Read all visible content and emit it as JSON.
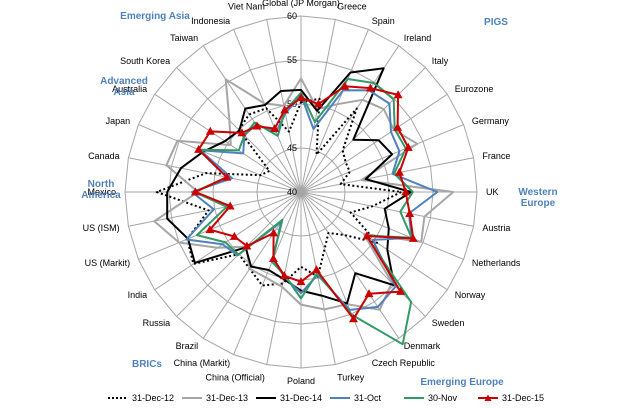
{
  "chart_data": {
    "type": "radar",
    "categories": [
      "Global (JP Morgan)",
      "Greece",
      "Spain",
      "Ireland",
      "Italy",
      "Eurozone",
      "Germany",
      "France",
      "UK",
      "Austria",
      "Netherlands",
      "Norway",
      "Sweden",
      "Denmark",
      "Czech Republic",
      "Turkey",
      "Poland",
      "China (Official)",
      "China (Markit)",
      "Brazil",
      "Russia",
      "India",
      "US (Markit)",
      "US (ISM)",
      "Mexico",
      "Canada",
      "Japan",
      "Australia",
      "South Korea",
      "Taiwan",
      "Indonesia",
      "Viet Nam"
    ],
    "ticks": [
      40,
      45,
      50,
      55,
      60
    ],
    "rlim": [
      40,
      60
    ],
    "groups": [
      {
        "name": "Emerging Asia"
      },
      {
        "name": "PIGS"
      },
      {
        "name": "Advanced Asia"
      },
      {
        "name": "Western Europe"
      },
      {
        "name": "North America"
      },
      {
        "name": "BRICs"
      },
      {
        "name": "Emerging Europe"
      }
    ],
    "series": [
      {
        "name": "31-Dec-12",
        "color": "#000000",
        "style": "dotted",
        "values": [
          50.2,
          50.8,
          44.6,
          51.4,
          46.7,
          46.1,
          46.0,
          44.6,
          51.4,
          48.3,
          46.1,
          50.4,
          46.9,
          45.6,
          47.0,
          49.8,
          48.5,
          50.6,
          51.5,
          50.5,
          50.0,
          54.7,
          54.0,
          50.7,
          56.4,
          51.0,
          45.0,
          44.3,
          50.0,
          50.6,
          50.3,
          47.0
        ]
      },
      {
        "name": "31-Dec-13",
        "color": "#a6a6a6",
        "style": "solid",
        "values": [
          52.9,
          49.6,
          50.8,
          52.6,
          53.3,
          52.7,
          54.3,
          47.0,
          57.3,
          54.3,
          54.8,
          48.6,
          54.6,
          56.1,
          53.8,
          53.6,
          52.8,
          51.0,
          50.5,
          50.5,
          48.8,
          51.4,
          55.0,
          57.0,
          51.7,
          55.6,
          55.2,
          49.6,
          51.5,
          55.4,
          50.9,
          50.0
        ]
      },
      {
        "name": "31-Dec-14",
        "color": "#000000",
        "style": "solid",
        "values": [
          51.6,
          49.4,
          54.7,
          56.9,
          48.4,
          50.6,
          51.2,
          47.5,
          52.5,
          49.7,
          50.8,
          51.8,
          55.0,
          51.1,
          53.7,
          52.0,
          51.2,
          50.1,
          49.6,
          50.2,
          48.9,
          54.5,
          53.9,
          55.5,
          55.2,
          53.9,
          52.0,
          50.4,
          49.9,
          51.4,
          50.7,
          51.7
        ]
      },
      {
        "name": "31-Oct",
        "color": "#4f81bd",
        "style": "solid",
        "values": [
          51.0,
          47.3,
          52.5,
          53.9,
          54.2,
          52.3,
          52.1,
          50.6,
          55.5,
          52.5,
          53.6,
          49.8,
          55.2,
          55.7,
          54.5,
          49.6,
          51.5,
          49.8,
          48.3,
          44.1,
          50.2,
          50.7,
          54.1,
          50.1,
          52.4,
          48.0,
          52.4,
          47.9,
          49.1,
          49.2,
          47.4,
          49.1
        ]
      },
      {
        "name": "30-Nov",
        "color": "#339966",
        "style": "solid",
        "values": [
          51.3,
          48.1,
          53.9,
          54.9,
          54.9,
          52.8,
          52.9,
          50.8,
          52.7,
          51.5,
          53.6,
          48.9,
          57.7,
          60.8,
          55.1,
          49.4,
          52.1,
          49.6,
          48.6,
          43.8,
          50.1,
          50.3,
          52.8,
          48.6,
          52.1,
          48.6,
          52.6,
          48.5,
          49.1,
          49.5,
          46.9,
          49.4
        ]
      },
      {
        "name": "31-Dec-15",
        "color": "#cc0000",
        "style": "solid-triangle",
        "values": [
          50.7,
          50.2,
          53.0,
          54.2,
          55.6,
          53.2,
          53.2,
          51.4,
          51.9,
          52.6,
          53.8,
          49.0,
          56.0,
          53.9,
          55.6,
          49.0,
          50.2,
          49.7,
          48.2,
          45.6,
          48.7,
          49.1,
          51.2,
          48.2,
          52.0,
          48.6,
          52.6,
          52.4,
          49.5,
          49.0,
          47.8,
          49.5
        ]
      }
    ]
  }
}
